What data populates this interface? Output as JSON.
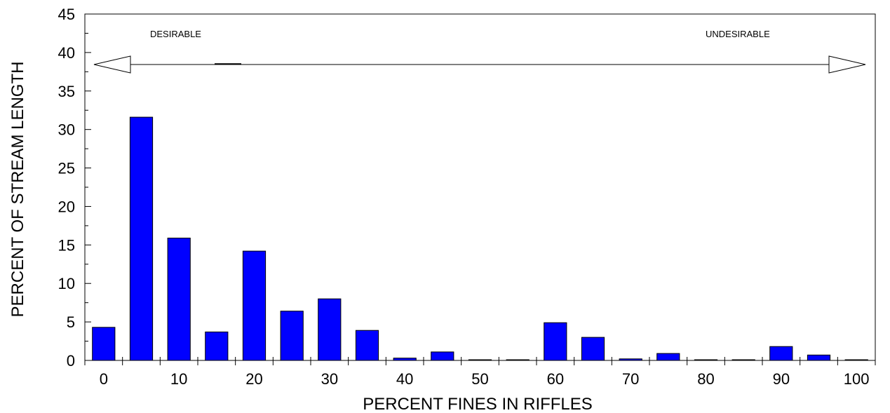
{
  "chart_data": {
    "type": "bar",
    "title": "",
    "xlabel": "PERCENT FINES IN RIFFLES",
    "ylabel": "PERCENT OF STREAM LENGTH",
    "x": [
      0,
      5,
      10,
      15,
      20,
      25,
      30,
      35,
      40,
      45,
      50,
      55,
      60,
      65,
      70,
      75,
      80,
      85,
      90,
      95,
      100
    ],
    "values": [
      4.3,
      31.6,
      15.9,
      3.7,
      14.2,
      6.4,
      8.0,
      3.9,
      0.3,
      1.1,
      0.0,
      0.0,
      4.9,
      3.0,
      0.2,
      0.9,
      0.0,
      0.0,
      1.8,
      0.7,
      0.0
    ],
    "xlim": [
      -2.5,
      102.5
    ],
    "ylim": [
      0,
      45
    ],
    "x_ticks": [
      0,
      10,
      20,
      30,
      40,
      50,
      60,
      70,
      80,
      90,
      100
    ],
    "y_ticks": [
      0,
      5,
      10,
      15,
      20,
      25,
      30,
      35,
      40,
      45
    ],
    "grid": false,
    "bar_color": "#0000ff",
    "annotations": {
      "left_label": "DESIRABLE",
      "right_label": "UNDESIRABLE"
    }
  }
}
